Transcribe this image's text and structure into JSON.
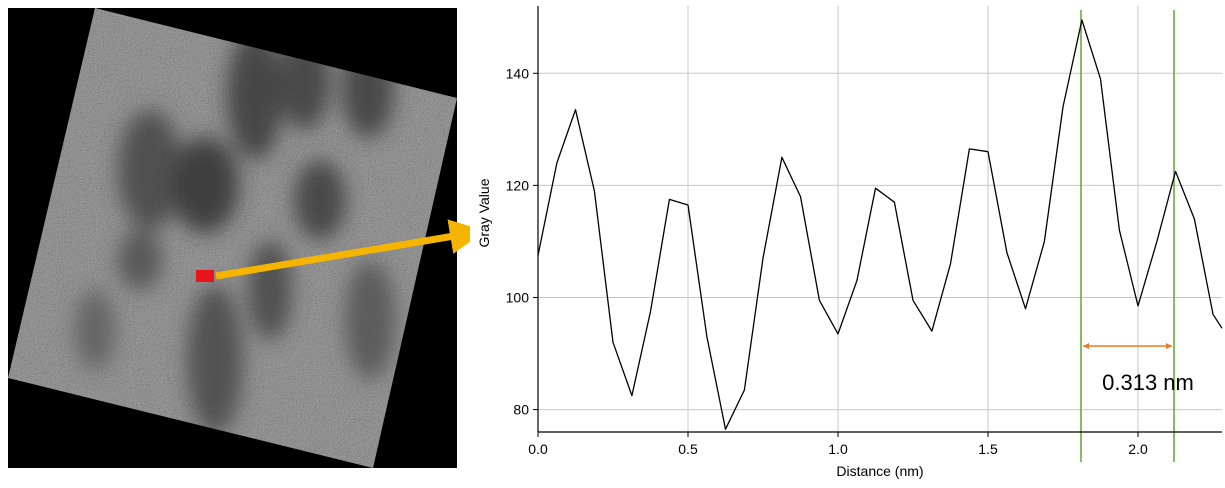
{
  "image": {
    "kind": "tem-micrograph",
    "tilted_square": true,
    "background": "#000000",
    "marker_color": "#e8141c",
    "arrow_color": "#f5b400"
  },
  "chart_data": {
    "type": "line",
    "title": "",
    "xlabel": "Distance (nm)",
    "ylabel": "Gray Value",
    "xlim": [
      0.0,
      2.28
    ],
    "ylim": [
      76,
      152
    ],
    "xticks": [
      0.0,
      0.5,
      1.0,
      1.5,
      2.0
    ],
    "xtick_labels": [
      "0.0",
      "0.5",
      "1.0",
      "1.5",
      "2.0"
    ],
    "yticks": [
      80,
      100,
      120,
      140
    ],
    "ytick_labels": [
      "80",
      "100",
      "120",
      "140"
    ],
    "grid": true,
    "series": [
      {
        "color": "#000000",
        "x": [
          0.0,
          0.063,
          0.125,
          0.188,
          0.25,
          0.313,
          0.375,
          0.438,
          0.5,
          0.563,
          0.625,
          0.688,
          0.75,
          0.813,
          0.875,
          0.938,
          1.0,
          1.063,
          1.125,
          1.188,
          1.25,
          1.313,
          1.375,
          1.438,
          1.5,
          1.563,
          1.625,
          1.688,
          1.75,
          1.813,
          1.875,
          1.938,
          2.0,
          2.063,
          2.125,
          2.188,
          2.25,
          2.28
        ],
        "y": [
          107.5,
          124,
          133.5,
          119,
          92,
          82.5,
          97.5,
          117.5,
          116.5,
          93,
          76.5,
          83.5,
          107,
          125,
          118,
          99.5,
          93.5,
          103,
          119.5,
          117,
          99.5,
          94,
          106,
          126.5,
          126,
          108,
          98,
          110,
          134,
          149.5,
          139,
          112,
          98.5,
          110,
          122.5,
          114,
          97,
          94.5
        ]
      }
    ],
    "markers": {
      "color": "#5aa832",
      "x": [
        1.81,
        2.12
      ]
    },
    "measure_color": "#f07820",
    "annotations": [
      {
        "text": "0.313 nm"
      }
    ]
  }
}
